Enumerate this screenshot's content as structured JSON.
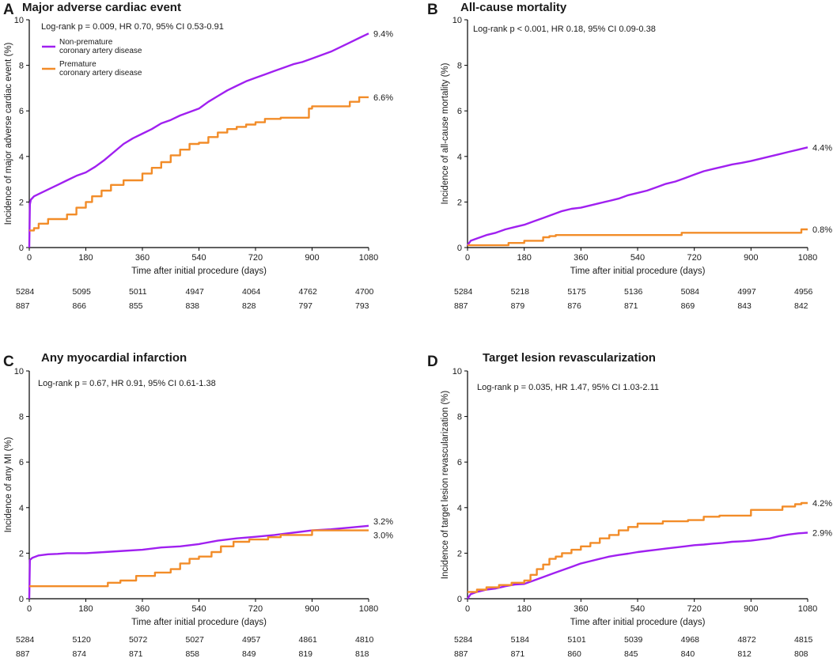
{
  "colors": {
    "non_premature": "#a020f0",
    "premature": "#f28c28"
  },
  "legend": {
    "non_premature": [
      "Non-premature",
      "coronary artery disease"
    ],
    "premature": [
      "Premature",
      "coronary artery disease"
    ]
  },
  "chart_data": [
    {
      "type": "line",
      "panel": "A",
      "title": "Major adverse cardiac event",
      "annotation": "Log-rank p = 0.009, HR 0.70, 95% CI 0.53-0.91",
      "xlabel": "Time after initial procedure (days)",
      "ylabel": "Incidence of major adverse cardiac event (%)",
      "xlim": [
        0,
        1080
      ],
      "ylim": [
        0,
        10
      ],
      "xticks": [
        "0",
        "180",
        "360",
        "540",
        "720",
        "900",
        "1080"
      ],
      "yticks": [
        "0",
        "2",
        "4",
        "6",
        "8",
        "10"
      ],
      "series": [
        {
          "name": "Non-premature coronary artery disease",
          "step": false,
          "x": [
            0,
            2,
            5,
            15,
            30,
            60,
            90,
            120,
            150,
            180,
            210,
            240,
            270,
            300,
            330,
            360,
            390,
            420,
            450,
            480,
            510,
            540,
            570,
            600,
            630,
            660,
            690,
            720,
            750,
            780,
            810,
            840,
            870,
            900,
            930,
            960,
            990,
            1020,
            1050,
            1080
          ],
          "y": [
            0,
            1.9,
            2.1,
            2.25,
            2.35,
            2.55,
            2.75,
            2.95,
            3.15,
            3.3,
            3.55,
            3.85,
            4.2,
            4.55,
            4.8,
            5.0,
            5.2,
            5.45,
            5.6,
            5.8,
            5.95,
            6.1,
            6.4,
            6.65,
            6.9,
            7.1,
            7.3,
            7.45,
            7.6,
            7.75,
            7.9,
            8.05,
            8.15,
            8.3,
            8.45,
            8.6,
            8.8,
            9.0,
            9.2,
            9.4
          ]
        },
        {
          "name": "Premature coronary artery disease",
          "step": true,
          "x": [
            0,
            15,
            30,
            60,
            120,
            150,
            180,
            200,
            230,
            260,
            300,
            360,
            390,
            420,
            450,
            480,
            510,
            540,
            570,
            600,
            630,
            660,
            690,
            720,
            750,
            800,
            860,
            890,
            900,
            1020,
            1050,
            1080
          ],
          "y": [
            0.75,
            0.85,
            1.05,
            1.25,
            1.45,
            1.75,
            2.0,
            2.25,
            2.5,
            2.75,
            2.95,
            3.25,
            3.5,
            3.75,
            4.05,
            4.3,
            4.55,
            4.6,
            4.85,
            5.05,
            5.2,
            5.3,
            5.4,
            5.5,
            5.65,
            5.7,
            5.7,
            6.1,
            6.2,
            6.4,
            6.6,
            6.6
          ]
        }
      ],
      "end_labels": [
        "9.4%",
        "6.6%"
      ],
      "risk_table": {
        "non_premature": [
          "5284",
          "5095",
          "5011",
          "4947",
          "4064",
          "4762",
          "4700"
        ],
        "premature": [
          "887",
          "866",
          "855",
          "838",
          "828",
          "797",
          "793"
        ]
      }
    },
    {
      "type": "line",
      "panel": "B",
      "title": "All-cause mortality",
      "annotation": "Log-rank p < 0.001, HR 0.18, 95% CI 0.09-0.38",
      "xlabel": "Time after initial procedure (days)",
      "ylabel": "Incidence of all-cause mortality (%)",
      "xlim": [
        0,
        1080
      ],
      "ylim": [
        0,
        10
      ],
      "xticks": [
        "0",
        "180",
        "360",
        "540",
        "720",
        "900",
        "1080"
      ],
      "yticks": [
        "0",
        "2",
        "4",
        "6",
        "8",
        "10"
      ],
      "series": [
        {
          "name": "Non-premature coronary artery disease",
          "step": false,
          "x": [
            0,
            10,
            30,
            60,
            90,
            120,
            150,
            180,
            210,
            240,
            270,
            300,
            330,
            360,
            390,
            420,
            450,
            480,
            510,
            540,
            570,
            600,
            630,
            660,
            690,
            720,
            750,
            780,
            810,
            840,
            870,
            900,
            930,
            960,
            990,
            1020,
            1050,
            1080
          ],
          "y": [
            0.1,
            0.3,
            0.4,
            0.55,
            0.65,
            0.8,
            0.9,
            1.0,
            1.15,
            1.3,
            1.45,
            1.6,
            1.7,
            1.75,
            1.85,
            1.95,
            2.05,
            2.15,
            2.3,
            2.4,
            2.5,
            2.65,
            2.8,
            2.9,
            3.05,
            3.2,
            3.35,
            3.45,
            3.55,
            3.65,
            3.72,
            3.8,
            3.9,
            4.0,
            4.1,
            4.2,
            4.3,
            4.4
          ]
        },
        {
          "name": "Premature coronary artery disease",
          "step": true,
          "x": [
            0,
            130,
            180,
            240,
            260,
            280,
            680,
            1060,
            1080
          ],
          "y": [
            0.1,
            0.2,
            0.3,
            0.45,
            0.5,
            0.55,
            0.65,
            0.8,
            0.8
          ]
        }
      ],
      "end_labels": [
        "4.4%",
        "0.8%"
      ],
      "risk_table": {
        "non_premature": [
          "5284",
          "5218",
          "5175",
          "5136",
          "5084",
          "4997",
          "4956"
        ],
        "premature": [
          "887",
          "879",
          "876",
          "871",
          "869",
          "843",
          "842"
        ]
      }
    },
    {
      "type": "line",
      "panel": "C",
      "title": "Any myocardial infarction",
      "annotation": "Log-rank p = 0.67, HR 0.91, 95% CI 0.61-1.38",
      "xlabel": "Time after initial procedure (days)",
      "ylabel": "Incidence of any MI (%)",
      "xlim": [
        0,
        1080
      ],
      "ylim": [
        0,
        10
      ],
      "xticks": [
        "0",
        "180",
        "360",
        "540",
        "720",
        "900",
        "1080"
      ],
      "yticks": [
        "0",
        "2",
        "4",
        "6",
        "8",
        "10"
      ],
      "series": [
        {
          "name": "Non-premature coronary artery disease",
          "step": false,
          "x": [
            0,
            2,
            10,
            30,
            60,
            90,
            120,
            180,
            240,
            300,
            360,
            420,
            480,
            540,
            600,
            660,
            720,
            780,
            840,
            900,
            960,
            1020,
            1080
          ],
          "y": [
            0,
            1.7,
            1.8,
            1.9,
            1.95,
            1.97,
            2.0,
            2.0,
            2.05,
            2.1,
            2.15,
            2.25,
            2.3,
            2.4,
            2.55,
            2.65,
            2.72,
            2.8,
            2.9,
            3.0,
            3.05,
            3.12,
            3.2
          ]
        },
        {
          "name": "Premature coronary artery disease",
          "step": true,
          "x": [
            0,
            250,
            290,
            340,
            400,
            450,
            480,
            510,
            540,
            580,
            610,
            650,
            700,
            760,
            800,
            900,
            1080
          ],
          "y": [
            0.55,
            0.7,
            0.8,
            1.0,
            1.15,
            1.3,
            1.55,
            1.75,
            1.85,
            2.05,
            2.3,
            2.5,
            2.6,
            2.7,
            2.8,
            3.0,
            3.0
          ]
        }
      ],
      "end_labels": [
        "3.2%",
        "3.0%"
      ],
      "risk_table": {
        "non_premature": [
          "5284",
          "5120",
          "5072",
          "5027",
          "4957",
          "4861",
          "4810"
        ],
        "premature": [
          "887",
          "874",
          "871",
          "858",
          "849",
          "819",
          "818"
        ]
      }
    },
    {
      "type": "line",
      "panel": "D",
      "title": "Target lesion revascularization",
      "annotation": "Log-rank p = 0.035, HR 1.47, 95% CI 1.03-2.11",
      "xlabel": "Time after initial procedure (days)",
      "ylabel": "Incidence of target lesion revascularization (%)",
      "xlim": [
        0,
        1080
      ],
      "ylim": [
        0,
        10
      ],
      "xticks": [
        "0",
        "180",
        "360",
        "540",
        "720",
        "900",
        "1080"
      ],
      "yticks": [
        "0",
        "2",
        "4",
        "6",
        "8",
        "10"
      ],
      "series": [
        {
          "name": "Non-premature coronary artery disease",
          "step": false,
          "x": [
            0,
            10,
            30,
            60,
            90,
            120,
            150,
            180,
            210,
            240,
            270,
            300,
            330,
            360,
            390,
            420,
            450,
            480,
            510,
            540,
            570,
            600,
            630,
            660,
            690,
            720,
            750,
            780,
            810,
            840,
            870,
            900,
            930,
            960,
            990,
            1020,
            1050,
            1080
          ],
          "y": [
            0,
            0.2,
            0.3,
            0.4,
            0.45,
            0.55,
            0.62,
            0.65,
            0.8,
            0.95,
            1.1,
            1.25,
            1.4,
            1.55,
            1.65,
            1.75,
            1.85,
            1.92,
            1.98,
            2.05,
            2.1,
            2.15,
            2.2,
            2.25,
            2.3,
            2.35,
            2.38,
            2.42,
            2.45,
            2.5,
            2.52,
            2.55,
            2.6,
            2.65,
            2.75,
            2.82,
            2.87,
            2.9
          ]
        },
        {
          "name": "Premature coronary artery disease",
          "step": true,
          "x": [
            0,
            30,
            60,
            100,
            140,
            180,
            200,
            220,
            240,
            260,
            280,
            300,
            330,
            360,
            390,
            420,
            450,
            480,
            510,
            540,
            620,
            700,
            750,
            800,
            900,
            1000,
            1040,
            1060,
            1080
          ],
          "y": [
            0.3,
            0.4,
            0.5,
            0.6,
            0.7,
            0.8,
            1.05,
            1.3,
            1.5,
            1.75,
            1.85,
            2.0,
            2.15,
            2.3,
            2.45,
            2.65,
            2.8,
            3.0,
            3.15,
            3.3,
            3.4,
            3.45,
            3.6,
            3.65,
            3.9,
            4.05,
            4.15,
            4.2,
            4.2
          ]
        }
      ],
      "end_labels": [
        "2.9%",
        "4.2%"
      ],
      "risk_table": {
        "non_premature": [
          "5284",
          "5184",
          "5101",
          "5039",
          "4968",
          "4872",
          "4815"
        ],
        "premature": [
          "887",
          "871",
          "860",
          "845",
          "840",
          "812",
          "808"
        ]
      }
    }
  ]
}
